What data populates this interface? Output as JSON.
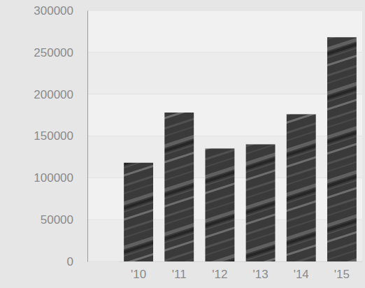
{
  "chart_data": {
    "type": "bar",
    "categories": [
      "'10",
      "'11",
      "'12",
      "'13",
      "'14",
      "'15"
    ],
    "values": [
      118000,
      178000,
      135000,
      140000,
      176000,
      268000
    ],
    "color": "#3a3a3a",
    "ylim": [
      0,
      300000
    ],
    "yticks": [
      0,
      50000,
      100000,
      150000,
      200000,
      250000,
      300000
    ],
    "grid": true
  }
}
